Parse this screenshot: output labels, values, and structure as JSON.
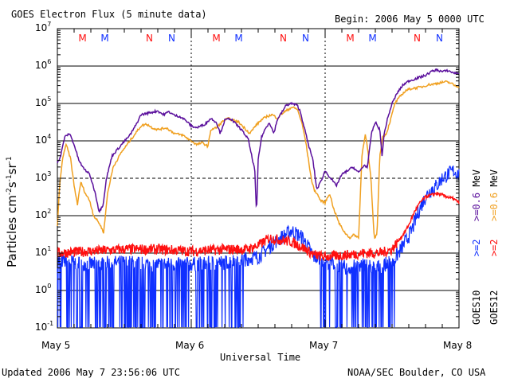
{
  "header": {
    "title": "GOES Electron Flux (5 minute data)",
    "begin": "Begin: 2006 May 5 0000 UTC"
  },
  "footer": {
    "updated": "Updated 2006 May  7 23:56:06 UTC",
    "credit": "NOAA/SEC Boulder, CO USA"
  },
  "colors": {
    "purple": "#5a0f9c",
    "orange": "#f0a020",
    "blue": "#1030ff",
    "red": "#ff1010"
  },
  "chart_data": {
    "type": "line",
    "title": "GOES Electron Flux (5 minute data)",
    "xlabel": "Universal Time",
    "ylabel": "Particles cm-2s-1sr-1",
    "xlim": [
      0,
      72
    ],
    "ylim_log10": [
      -1,
      7
    ],
    "y_tick_exponents": [
      -1,
      0,
      1,
      2,
      3,
      4,
      5,
      6,
      7
    ],
    "x_tick_labels": [
      {
        "hour": 0,
        "label": "May 5"
      },
      {
        "hour": 24,
        "label": "May 6"
      },
      {
        "hour": 48,
        "label": "May 7"
      },
      {
        "hour": 72,
        "label": "May 8"
      }
    ],
    "reference_line_log10": 3,
    "markers": [
      {
        "hour": 4.5,
        "label": "M",
        "satellite": "GOES12"
      },
      {
        "hour": 8.5,
        "label": "M",
        "satellite": "GOES10"
      },
      {
        "hour": 16.5,
        "label": "N",
        "satellite": "GOES12"
      },
      {
        "hour": 20.5,
        "label": "N",
        "satellite": "GOES10"
      },
      {
        "hour": 28.5,
        "label": "M",
        "satellite": "GOES12"
      },
      {
        "hour": 32.5,
        "label": "M",
        "satellite": "GOES10"
      },
      {
        "hour": 40.5,
        "label": "N",
        "satellite": "GOES12"
      },
      {
        "hour": 44.5,
        "label": "N",
        "satellite": "GOES10"
      },
      {
        "hour": 52.5,
        "label": "M",
        "satellite": "GOES12"
      },
      {
        "hour": 56.5,
        "label": "M",
        "satellite": "GOES10"
      },
      {
        "hour": 64.5,
        "label": "N",
        "satellite": "GOES12"
      },
      {
        "hour": 68.5,
        "label": "N",
        "satellite": "GOES10"
      }
    ],
    "right_labels": {
      "goes10": "GOES10",
      "goes12": "GOES12",
      "g10_2mev": ">=2",
      "g10_06mev": ">=0.6",
      "g12_2mev": ">=2",
      "g12_06mev": ">=0.6",
      "mev": "MeV"
    },
    "series": [
      {
        "name": "GOES10 >=0.6 MeV",
        "color_key": "purple",
        "points": [
          [
            0,
            3.4
          ],
          [
            0.6,
            3.6
          ],
          [
            1.3,
            4.1
          ],
          [
            2.2,
            4.2
          ],
          [
            3.0,
            3.9
          ],
          [
            3.8,
            3.5
          ],
          [
            4.5,
            3.3
          ],
          [
            5.8,
            3.1
          ],
          [
            6.8,
            2.6
          ],
          [
            7.5,
            2.1
          ],
          [
            8.2,
            2.3
          ],
          [
            8.8,
            3.0
          ],
          [
            9.8,
            3.6
          ],
          [
            11.5,
            3.9
          ],
          [
            13.0,
            4.15
          ],
          [
            14.0,
            4.4
          ],
          [
            15.0,
            4.7
          ],
          [
            16.5,
            4.75
          ],
          [
            18.0,
            4.8
          ],
          [
            19.0,
            4.7
          ],
          [
            20.0,
            4.78
          ],
          [
            21.0,
            4.68
          ],
          [
            22.0,
            4.65
          ],
          [
            23.0,
            4.55
          ],
          [
            24.0,
            4.4
          ],
          [
            25.0,
            4.35
          ],
          [
            26.5,
            4.45
          ],
          [
            27.5,
            4.6
          ],
          [
            28.5,
            4.5
          ],
          [
            29.2,
            4.2
          ],
          [
            30.0,
            4.55
          ],
          [
            31.0,
            4.6
          ],
          [
            32.0,
            4.45
          ],
          [
            33.0,
            4.3
          ],
          [
            34.2,
            4.05
          ],
          [
            35.4,
            3.2
          ],
          [
            35.7,
            2.0
          ],
          [
            36.0,
            3.5
          ],
          [
            36.6,
            4.1
          ],
          [
            37.2,
            4.3
          ],
          [
            38.0,
            4.5
          ],
          [
            38.8,
            4.2
          ],
          [
            39.5,
            4.6
          ],
          [
            40.0,
            4.7
          ],
          [
            41.0,
            4.95
          ],
          [
            42.0,
            5.0
          ],
          [
            43.0,
            4.95
          ],
          [
            43.5,
            4.8
          ],
          [
            44.2,
            4.4
          ],
          [
            45.0,
            3.9
          ],
          [
            45.8,
            3.5
          ],
          [
            46.5,
            2.7
          ],
          [
            47.2,
            2.9
          ],
          [
            48.0,
            3.2
          ],
          [
            49.0,
            3.0
          ],
          [
            50.0,
            2.8
          ],
          [
            51.0,
            3.1
          ],
          [
            52.0,
            3.2
          ],
          [
            53.0,
            3.3
          ],
          [
            54.0,
            3.15
          ],
          [
            55.0,
            3.35
          ],
          [
            55.6,
            3.3
          ],
          [
            56.3,
            4.2
          ],
          [
            57.0,
            4.5
          ],
          [
            57.8,
            4.3
          ],
          [
            58.2,
            3.6
          ],
          [
            58.6,
            4.2
          ],
          [
            59.2,
            4.6
          ],
          [
            60.0,
            5.0
          ],
          [
            61.0,
            5.3
          ],
          [
            62.0,
            5.5
          ],
          [
            63.0,
            5.6
          ],
          [
            64.0,
            5.65
          ],
          [
            65.0,
            5.7
          ],
          [
            66.0,
            5.75
          ],
          [
            67.0,
            5.85
          ],
          [
            68.0,
            5.9
          ],
          [
            69.0,
            5.85
          ],
          [
            70.0,
            5.88
          ],
          [
            71.0,
            5.82
          ],
          [
            72.0,
            5.8
          ]
        ]
      },
      {
        "name": "GOES12 >=0.6 MeV",
        "color_key": "orange",
        "points": [
          [
            0,
            1.7
          ],
          [
            0.4,
            2.8
          ],
          [
            1.0,
            3.6
          ],
          [
            1.6,
            3.9
          ],
          [
            2.4,
            3.5
          ],
          [
            3.0,
            2.8
          ],
          [
            3.6,
            2.3
          ],
          [
            4.2,
            2.9
          ],
          [
            5.0,
            2.6
          ],
          [
            5.8,
            2.4
          ],
          [
            6.5,
            2.0
          ],
          [
            7.5,
            1.8
          ],
          [
            8.3,
            1.55
          ],
          [
            9.0,
            2.6
          ],
          [
            10.0,
            3.3
          ],
          [
            11.5,
            3.7
          ],
          [
            13.0,
            4.0
          ],
          [
            14.0,
            4.2
          ],
          [
            15.0,
            4.4
          ],
          [
            16.0,
            4.45
          ],
          [
            17.0,
            4.35
          ],
          [
            18.0,
            4.3
          ],
          [
            19.5,
            4.35
          ],
          [
            21.0,
            4.2
          ],
          [
            22.5,
            4.15
          ],
          [
            24.0,
            4.0
          ],
          [
            25.0,
            3.9
          ],
          [
            26.0,
            3.95
          ],
          [
            27.0,
            3.85
          ],
          [
            27.5,
            4.3
          ],
          [
            28.5,
            4.35
          ],
          [
            29.5,
            4.5
          ],
          [
            30.5,
            4.6
          ],
          [
            31.5,
            4.55
          ],
          [
            32.5,
            4.5
          ],
          [
            33.5,
            4.35
          ],
          [
            34.5,
            4.2
          ],
          [
            35.5,
            4.4
          ],
          [
            36.5,
            4.55
          ],
          [
            37.5,
            4.65
          ],
          [
            38.5,
            4.7
          ],
          [
            39.5,
            4.6
          ],
          [
            40.0,
            4.7
          ],
          [
            41.0,
            4.8
          ],
          [
            42.0,
            4.9
          ],
          [
            43.0,
            4.85
          ],
          [
            43.8,
            4.5
          ],
          [
            44.5,
            4.0
          ],
          [
            45.0,
            3.5
          ],
          [
            45.5,
            3.0
          ],
          [
            46.0,
            2.7
          ],
          [
            46.5,
            2.6
          ],
          [
            47.2,
            2.4
          ],
          [
            48.0,
            2.35
          ],
          [
            48.8,
            2.6
          ],
          [
            49.5,
            2.2
          ],
          [
            50.5,
            1.8
          ],
          [
            51.5,
            1.55
          ],
          [
            52.5,
            1.4
          ],
          [
            53.2,
            1.5
          ],
          [
            54.0,
            1.4
          ],
          [
            54.6,
            3.6
          ],
          [
            55.2,
            4.2
          ],
          [
            55.6,
            3.8
          ],
          [
            56.2,
            3.0
          ],
          [
            56.8,
            1.4
          ],
          [
            57.3,
            1.5
          ],
          [
            57.8,
            3.6
          ],
          [
            58.3,
            4.1
          ],
          [
            59.0,
            4.2
          ],
          [
            59.8,
            4.6
          ],
          [
            60.5,
            5.0
          ],
          [
            61.5,
            5.2
          ],
          [
            62.5,
            5.35
          ],
          [
            63.5,
            5.4
          ],
          [
            64.5,
            5.42
          ],
          [
            65.5,
            5.45
          ],
          [
            66.5,
            5.5
          ],
          [
            67.5,
            5.52
          ],
          [
            68.5,
            5.55
          ],
          [
            69.5,
            5.58
          ],
          [
            70.5,
            5.55
          ],
          [
            71.2,
            5.48
          ],
          [
            72.0,
            5.45
          ]
        ]
      },
      {
        "name": "GOES10 >=2 MeV",
        "color_key": "blue",
        "points": [
          [
            0,
            0.8
          ],
          [
            6,
            0.7
          ],
          [
            12,
            0.75
          ],
          [
            18,
            0.7
          ],
          [
            24,
            0.7
          ],
          [
            30,
            0.75
          ],
          [
            36,
            0.9
          ],
          [
            39,
            1.3
          ],
          [
            42,
            1.6
          ],
          [
            44,
            1.4
          ],
          [
            46,
            0.9
          ],
          [
            48,
            0.8
          ],
          [
            52,
            0.6
          ],
          [
            55,
            0.7
          ],
          [
            57,
            0.6
          ],
          [
            59,
            0.7
          ],
          [
            60.5,
            0.85
          ],
          [
            62,
            1.2
          ],
          [
            63.5,
            1.6
          ],
          [
            65,
            2.2
          ],
          [
            66,
            2.5
          ],
          [
            67,
            2.7
          ],
          [
            68,
            2.8
          ],
          [
            69,
            3.0
          ],
          [
            70,
            3.1
          ],
          [
            71,
            3.2
          ],
          [
            72,
            3.1
          ]
        ]
      },
      {
        "name": "GOES12 >=2 MeV",
        "color_key": "red",
        "points": [
          [
            0,
            1.0
          ],
          [
            6,
            1.05
          ],
          [
            12,
            1.1
          ],
          [
            18,
            1.1
          ],
          [
            24,
            1.05
          ],
          [
            30,
            1.1
          ],
          [
            34,
            1.1
          ],
          [
            36,
            1.2
          ],
          [
            38,
            1.4
          ],
          [
            40,
            1.35
          ],
          [
            42,
            1.3
          ],
          [
            44,
            1.15
          ],
          [
            46,
            0.95
          ],
          [
            48,
            0.9
          ],
          [
            52,
            0.95
          ],
          [
            55,
            1.0
          ],
          [
            58,
            1.0
          ],
          [
            60,
            1.1
          ],
          [
            61,
            1.3
          ],
          [
            62,
            1.5
          ],
          [
            63,
            1.75
          ],
          [
            64,
            2.1
          ],
          [
            65,
            2.35
          ],
          [
            66,
            2.5
          ],
          [
            67,
            2.55
          ],
          [
            68,
            2.6
          ],
          [
            69,
            2.55
          ],
          [
            70,
            2.5
          ],
          [
            71,
            2.45
          ],
          [
            72,
            2.35
          ]
        ]
      }
    ]
  }
}
